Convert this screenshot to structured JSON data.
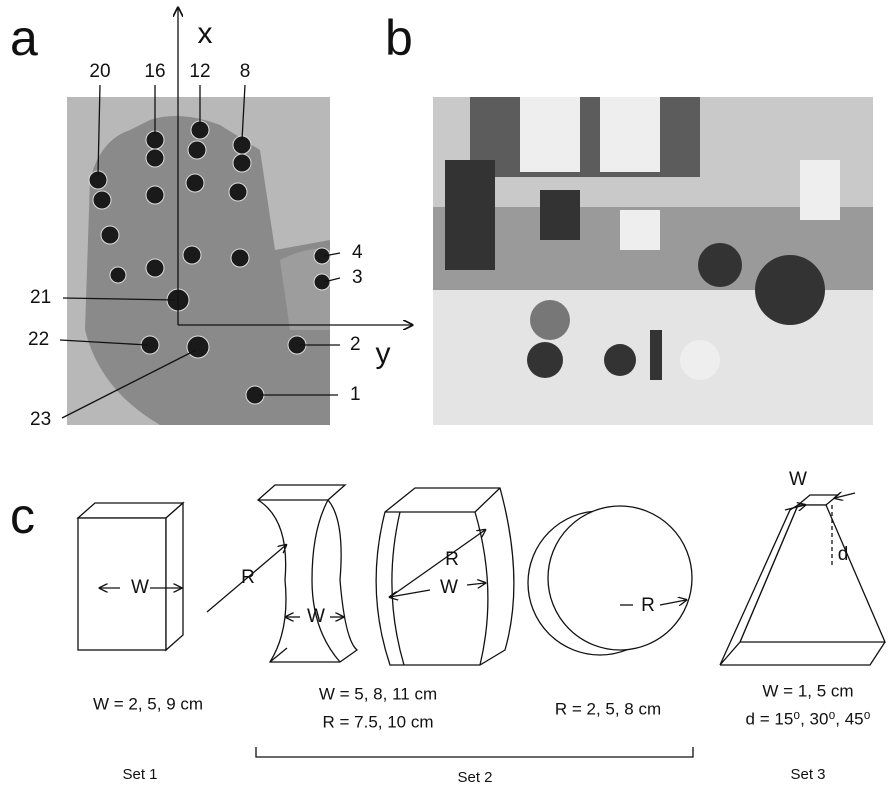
{
  "panels": {
    "a": {
      "label": "a",
      "axes": {
        "x": "x",
        "y": "y"
      },
      "sensors": [
        "20",
        "16",
        "12",
        "8",
        "4",
        "3",
        "21",
        "2",
        "22",
        "1",
        "23"
      ]
    },
    "b": {
      "label": "b"
    },
    "c": {
      "label": "c",
      "objects": [
        {
          "labels": [
            "W"
          ]
        },
        {
          "labels": [
            "R",
            "W"
          ]
        },
        {
          "labels": [
            "R",
            "W"
          ]
        },
        {
          "labels": [
            "R"
          ]
        },
        {
          "labels": [
            "W",
            "d"
          ]
        }
      ],
      "dimensions": [
        "W = 2, 5, 9 cm",
        "W = 5, 8, 11 cm",
        "R = 7.5, 10 cm",
        "R = 2, 5, 8 cm",
        "W = 1, 5 cm",
        "d = 15⁰, 30⁰, 45⁰"
      ],
      "sets": [
        "Set 1",
        "Set 2",
        "Set 3"
      ]
    }
  }
}
